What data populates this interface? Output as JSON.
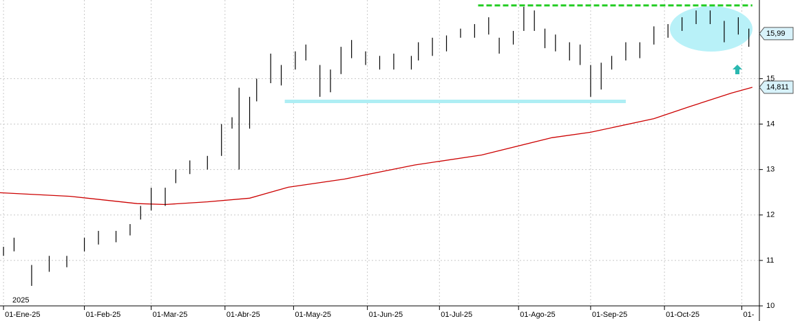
{
  "chart_data": {
    "type": "ohlc",
    "x": [
      0,
      3,
      8,
      13,
      18,
      23,
      27,
      32,
      36,
      39,
      42,
      46,
      49,
      53,
      58,
      62,
      65,
      67,
      70,
      72,
      76,
      79,
      83,
      86,
      90,
      93,
      96,
      99,
      103,
      107,
      111,
      116,
      118,
      122,
      126,
      130,
      134,
      138,
      141,
      145,
      148,
      151,
      154,
      157,
      161,
      164,
      167,
      170,
      173,
      177,
      181,
      185,
      189,
      193,
      197,
      201,
      205,
      209,
      212
    ],
    "high": [
      11.3,
      11.5,
      10.9,
      11.1,
      11.1,
      11.5,
      11.65,
      11.65,
      11.8,
      12.2,
      12.6,
      12.6,
      13.0,
      13.2,
      13.3,
      14.0,
      14.15,
      14.8,
      14.6,
      15.0,
      15.55,
      15.3,
      15.6,
      15.75,
      15.3,
      15.2,
      15.7,
      15.85,
      15.6,
      15.5,
      15.55,
      15.5,
      15.8,
      15.9,
      15.95,
      16.1,
      16.2,
      16.35,
      15.9,
      16.05,
      16.58,
      16.5,
      16.1,
      15.97,
      15.8,
      15.75,
      15.3,
      15.35,
      15.5,
      15.8,
      15.8,
      16.15,
      16.2,
      16.35,
      16.5,
      16.5,
      16.27,
      16.35,
      16.1
    ],
    "low": [
      11.1,
      11.2,
      10.44,
      10.75,
      10.85,
      11.2,
      11.35,
      11.4,
      11.55,
      11.9,
      12.1,
      12.2,
      12.7,
      12.9,
      13.0,
      13.3,
      13.9,
      13.0,
      13.9,
      14.5,
      14.9,
      14.85,
      15.2,
      15.4,
      14.6,
      14.7,
      15.1,
      15.45,
      15.3,
      15.2,
      15.2,
      15.2,
      15.4,
      15.5,
      15.6,
      15.9,
      15.9,
      15.97,
      15.55,
      15.75,
      16.05,
      16.05,
      15.67,
      15.6,
      15.4,
      15.3,
      14.6,
      14.76,
      15.2,
      15.4,
      15.45,
      15.75,
      15.9,
      16.05,
      16.2,
      16.2,
      15.8,
      15.97,
      15.7
    ],
    "bar_color": "#000000",
    "ma": {
      "color": "#cc0000",
      "x": [
        -1,
        19,
        38,
        46,
        58,
        70,
        81,
        97,
        117,
        136,
        156,
        167,
        185,
        195,
        207,
        213
      ],
      "values": [
        12.49,
        12.41,
        12.25,
        12.23,
        12.29,
        12.37,
        12.61,
        12.79,
        13.1,
        13.32,
        13.7,
        13.82,
        14.12,
        14.38,
        14.68,
        14.81
      ]
    },
    "levels": [
      {
        "value": 16.61,
        "from": 135,
        "to": 213,
        "color": "#22cc22",
        "dashed": true
      },
      {
        "value": 14.5,
        "from": 80,
        "to": 177,
        "color": "#aeeef4",
        "dashed": false
      }
    ],
    "price_tags": [
      {
        "value": 15.99,
        "label": "15,99"
      },
      {
        "value": 14.811,
        "label": "14,811"
      }
    ],
    "year_label": "2025",
    "xlim": [
      -1,
      215
    ],
    "ylim": [
      10,
      16.73
    ],
    "yticks": [
      10,
      11,
      12,
      13,
      14,
      15
    ],
    "xticks": [
      {
        "value": 0,
        "label": "01-Ene-25"
      },
      {
        "value": 23,
        "label": "01-Feb-25"
      },
      {
        "value": 42,
        "label": "01-Mar-25"
      },
      {
        "value": 63,
        "label": "01-Abr-25"
      },
      {
        "value": 82.5,
        "label": "01-May-25"
      },
      {
        "value": 103.5,
        "label": "01-Jun-25"
      },
      {
        "value": 124,
        "label": "01-Jul-25"
      },
      {
        "value": 146.5,
        "label": "01-Ago-25"
      },
      {
        "value": 167,
        "label": "01-Sep-25"
      },
      {
        "value": 188,
        "label": "01-Oct-25"
      },
      {
        "value": 210,
        "label": "01-"
      }
    ],
    "grid": true
  }
}
